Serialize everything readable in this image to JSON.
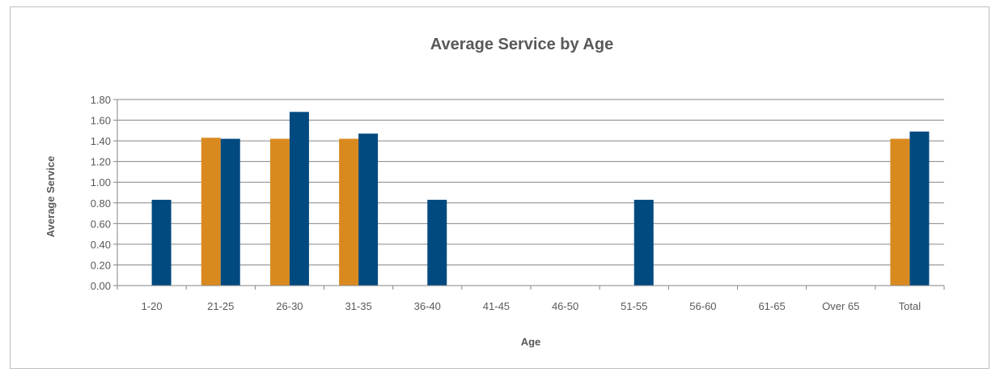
{
  "chart_data": {
    "type": "bar",
    "title": "Average Service by Age",
    "xlabel": "Age",
    "ylabel": "Average Service",
    "categories": [
      "1-20",
      "21-25",
      "26-30",
      "31-35",
      "36-40",
      "41-45",
      "46-50",
      "51-55",
      "56-60",
      "61-65",
      "Over 65",
      "Total"
    ],
    "series": [
      {
        "values": [
          null,
          1.43,
          1.42,
          1.42,
          null,
          null,
          null,
          null,
          null,
          null,
          null,
          1.42
        ],
        "color": "#d98a1f"
      },
      {
        "values": [
          0.83,
          1.42,
          1.68,
          1.47,
          0.83,
          null,
          null,
          0.83,
          null,
          null,
          null,
          1.49
        ],
        "color": "#004a80"
      }
    ],
    "ylim": [
      0,
      1.8
    ],
    "yticks": [
      0,
      0.2,
      0.4,
      0.6,
      0.8,
      1.0,
      1.2,
      1.4,
      1.6,
      1.8
    ],
    "ytick_labels": [
      "0.00",
      "0.20",
      "0.40",
      "0.60",
      "0.80",
      "1.00",
      "1.20",
      "1.40",
      "1.60",
      "1.80"
    ],
    "grid": true,
    "legend": "none"
  }
}
